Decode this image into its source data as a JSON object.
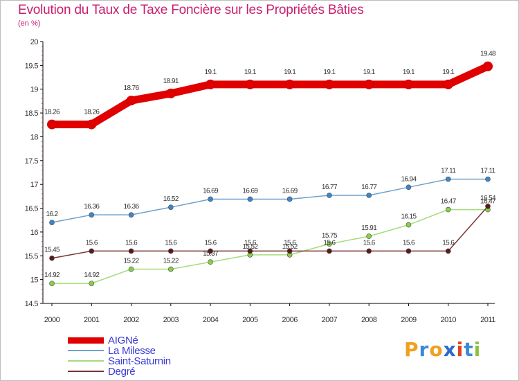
{
  "title": "Evolution du Taux de Taxe Foncière sur les Propriétés Bâties",
  "unit_label": "(en %)",
  "chart_data": {
    "type": "line",
    "title": "Evolution du Taux de Taxe Foncière sur les Propriétés Bâties",
    "ylabel": "(en %)",
    "ylim": [
      14.5,
      20
    ],
    "yticks": [
      14.5,
      15,
      15.5,
      16,
      16.5,
      17,
      17.5,
      18,
      18.5,
      19,
      19.5,
      20
    ],
    "categories": [
      "2000",
      "2001",
      "2002",
      "2003",
      "2004",
      "2005",
      "2006",
      "2007",
      "2008",
      "2009",
      "2010",
      "2011"
    ],
    "series": [
      {
        "name": "AIGNé",
        "color": "#e00000",
        "marker": "#e00000",
        "values": [
          18.26,
          18.26,
          18.76,
          18.91,
          19.1,
          19.1,
          19.1,
          19.1,
          19.1,
          19.1,
          19.1,
          19.48
        ],
        "labels": [
          "18.26",
          "18.26",
          "18.76",
          "18.91",
          "19.1",
          "19.1",
          "19.1",
          "19.1",
          "19.1",
          "19.1",
          "19.1",
          "19.48"
        ]
      },
      {
        "name": "La Milesse",
        "color": "#6fa0cc",
        "marker": "#3d86c8",
        "values": [
          16.2,
          16.36,
          16.36,
          16.52,
          16.69,
          16.69,
          16.69,
          16.77,
          16.77,
          16.94,
          17.11,
          17.11
        ],
        "labels": [
          "16.2",
          "16.36",
          "16.36",
          "16.52",
          "16.69",
          "16.69",
          "16.69",
          "16.77",
          "16.77",
          "16.94",
          "17.11",
          "17.11"
        ]
      },
      {
        "name": "Saint-Saturnin",
        "color": "#a6dc7a",
        "marker": "#88d04a",
        "values": [
          14.92,
          14.92,
          15.22,
          15.22,
          15.37,
          15.52,
          15.52,
          15.75,
          15.91,
          16.15,
          16.47,
          16.47
        ],
        "labels": [
          "14.92",
          "14.92",
          "15.22",
          "15.22",
          "15.37",
          "15.52",
          "15.52",
          "15.75",
          "15.91",
          "16.15",
          "16.47",
          "16.47"
        ]
      },
      {
        "name": "Degré",
        "color": "#7a3535",
        "marker": "#5a1a1a",
        "values": [
          15.45,
          15.6,
          15.6,
          15.6,
          15.6,
          15.6,
          15.6,
          15.6,
          15.6,
          15.6,
          15.6,
          16.54
        ],
        "labels": [
          "15.45",
          "15.6",
          "15.6",
          "15.6",
          "15.6",
          "15.6",
          "15.6",
          "15.6",
          "15.6",
          "15.6",
          "15.6",
          "16.54"
        ]
      }
    ],
    "legend": "bottom-left",
    "grid": false
  },
  "logo": {
    "text": "Proxiti",
    "colors": [
      "#f0a020",
      "#3a8ad8",
      "#f0a020",
      "#2a6ad0",
      "#e04020",
      "#3a8ad8",
      "#8cc040"
    ]
  }
}
